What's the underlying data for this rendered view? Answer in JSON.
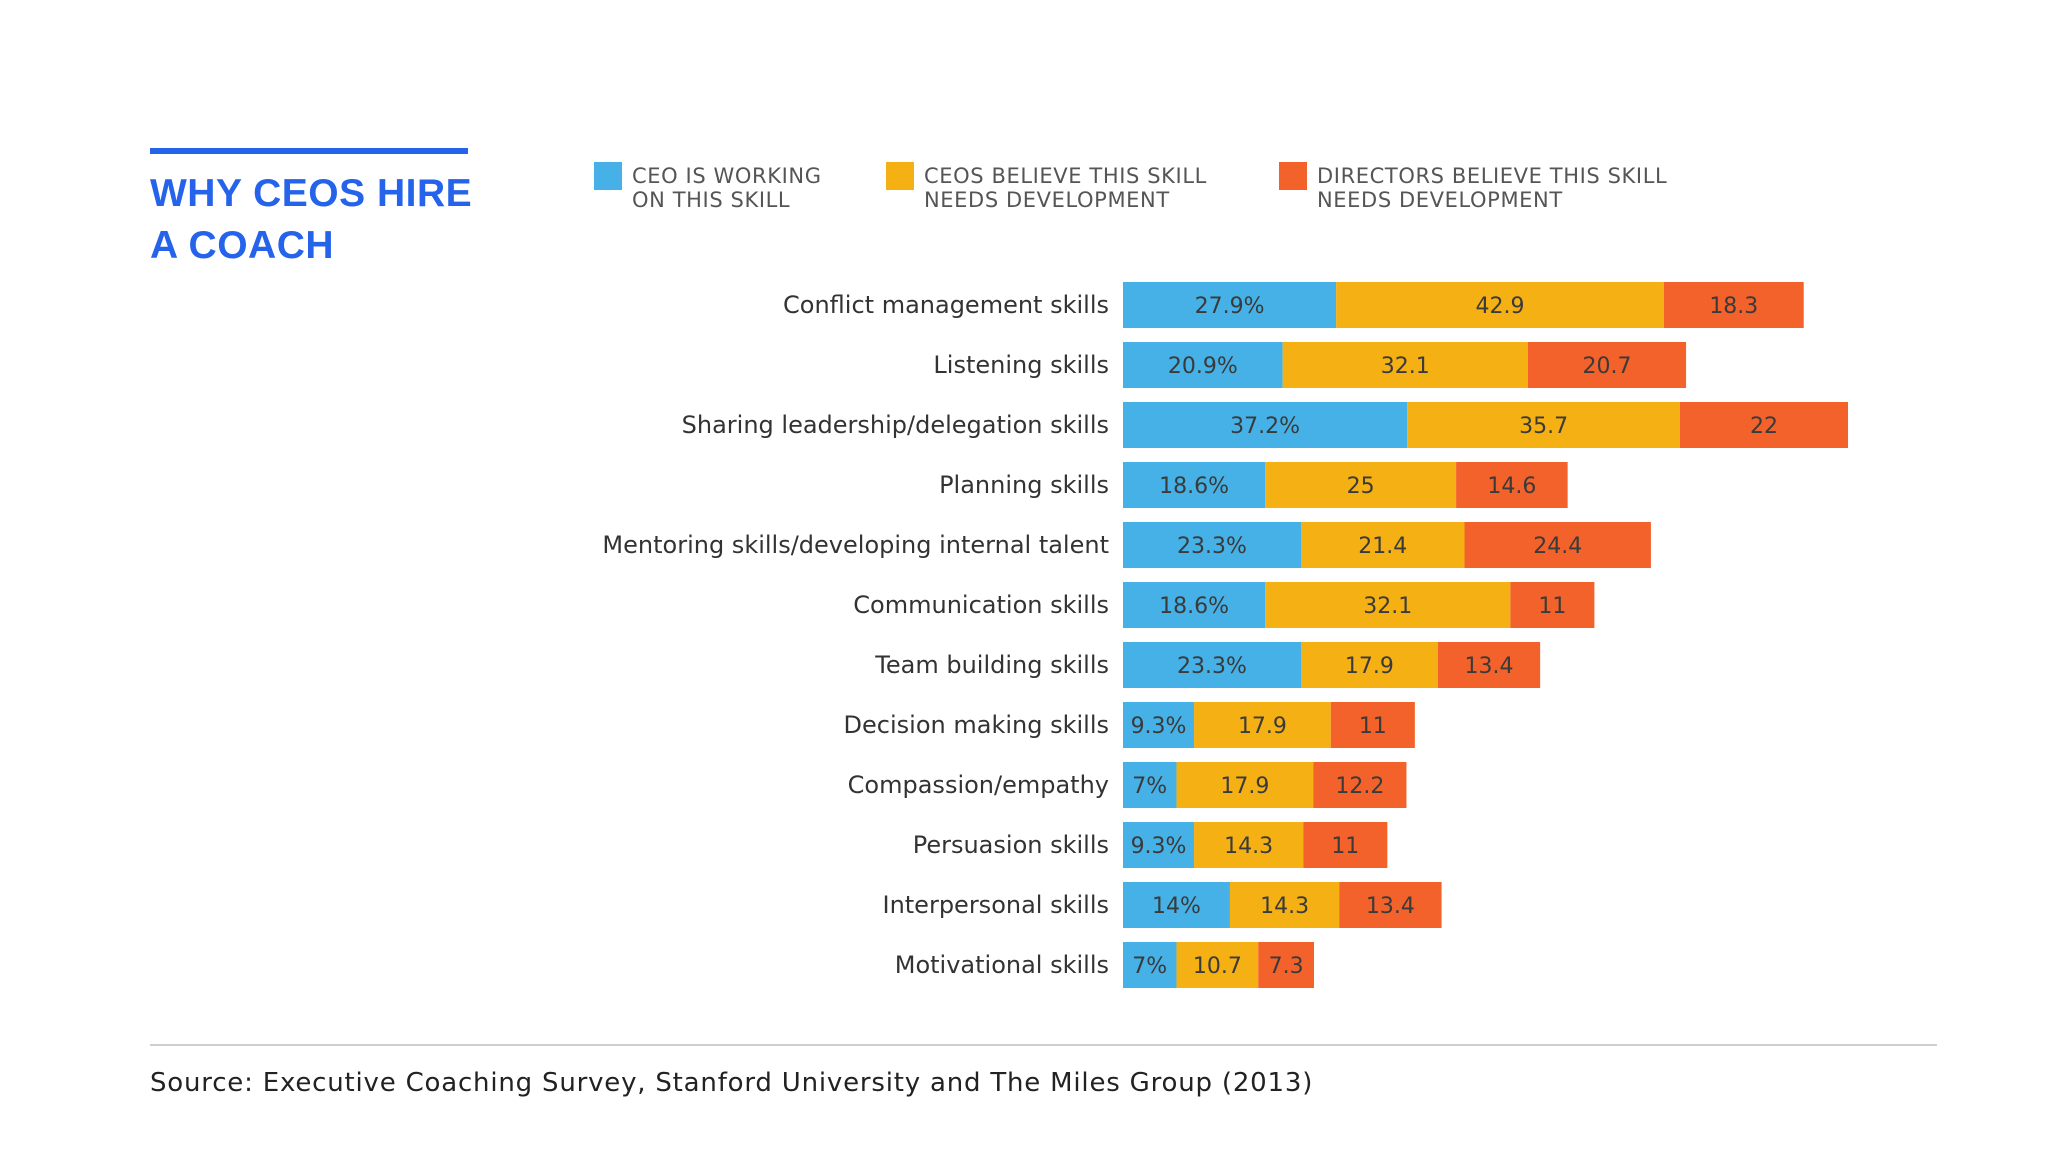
{
  "title": {
    "line1": "WHY CEOS HIRE",
    "line2": "A COACH"
  },
  "legend": [
    {
      "line1": "CEO IS WORKING",
      "line2": "ON THIS SKILL",
      "color": "#45b1e6"
    },
    {
      "line1": "CEOS BELIEVE THIS SKILL",
      "line2": "NEEDS DEVELOPMENT",
      "color": "#f5b014"
    },
    {
      "line1": "DIRECTORS BELIEVE THIS SKILL",
      "line2": "NEEDS DEVELOPMENT",
      "color": "#f2622a"
    }
  ],
  "source": "Source: Executive Coaching Survey, Stanford University and The Miles Group (2013)",
  "chart_data": {
    "type": "bar",
    "orientation": "horizontal",
    "stacked": true,
    "title": "WHY CEOS HIRE A COACH",
    "categories": [
      "Conflict management skills",
      "Listening skills",
      "Sharing leadership/delegation skills",
      "Planning skills",
      "Mentoring skills/developing internal talent",
      "Communication skills",
      "Team building skills",
      "Decision making skills",
      "Compassion/empathy",
      "Persuasion skills",
      "Interpersonal skills",
      "Motivational skills"
    ],
    "series": [
      {
        "name": "CEO IS WORKING ON THIS SKILL",
        "color": "#45b1e6",
        "values": [
          27.9,
          20.9,
          37.2,
          18.6,
          23.3,
          18.6,
          23.3,
          9.3,
          7,
          9.3,
          14,
          7
        ],
        "labels": [
          "27.9%",
          "20.9%",
          "37.2%",
          "18.6%",
          "23.3%",
          "18.6%",
          "23.3%",
          "9.3%",
          "7%",
          "9.3%",
          "14%",
          "7%"
        ]
      },
      {
        "name": "CEOS BELIEVE THIS SKILL NEEDS DEVELOPMENT",
        "color": "#f5b014",
        "values": [
          42.9,
          32.1,
          35.7,
          25,
          21.4,
          32.1,
          17.9,
          17.9,
          17.9,
          14.3,
          14.3,
          10.7
        ],
        "labels": [
          "42.9",
          "32.1",
          "35.7",
          "25",
          "21.4",
          "32.1",
          "17.9",
          "17.9",
          "17.9",
          "14.3",
          "14.3",
          "10.7"
        ]
      },
      {
        "name": "DIRECTORS BELIEVE THIS SKILL NEEDS DEVELOPMENT",
        "color": "#f2622a",
        "values": [
          18.3,
          20.7,
          22,
          14.6,
          24.4,
          11,
          13.4,
          11,
          12.2,
          11,
          13.4,
          7.3
        ],
        "labels": [
          "18.3",
          "20.7",
          "22",
          "14.6",
          "24.4",
          "11",
          "13.4",
          "11",
          "12.2",
          "11",
          "13.4",
          "7.3"
        ]
      }
    ],
    "grid": false,
    "legend_position": "top"
  }
}
